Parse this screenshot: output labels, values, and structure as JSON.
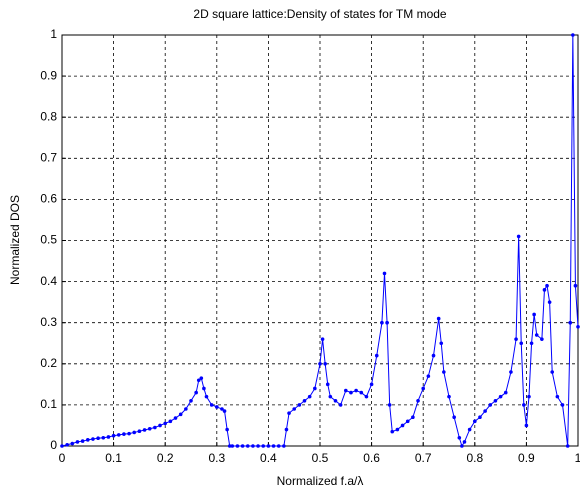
{
  "chart_data": {
    "type": "line",
    "title": "2D square lattice:Density of states for TM mode",
    "xlabel": "Normalized f.a/λ",
    "ylabel": "Normalized DOS",
    "x": [
      0,
      0.01,
      0.02,
      0.03,
      0.04,
      0.05,
      0.06,
      0.07,
      0.08,
      0.09,
      0.1,
      0.11,
      0.12,
      0.13,
      0.14,
      0.15,
      0.16,
      0.17,
      0.18,
      0.19,
      0.2,
      0.21,
      0.22,
      0.23,
      0.24,
      0.25,
      0.26,
      0.265,
      0.27,
      0.275,
      0.28,
      0.29,
      0.3,
      0.31,
      0.315,
      0.32,
      0.325,
      0.33,
      0.34,
      0.35,
      0.36,
      0.37,
      0.38,
      0.39,
      0.4,
      0.41,
      0.42,
      0.43,
      0.435,
      0.44,
      0.45,
      0.46,
      0.47,
      0.48,
      0.49,
      0.5,
      0.505,
      0.51,
      0.515,
      0.52,
      0.53,
      0.54,
      0.55,
      0.56,
      0.57,
      0.58,
      0.59,
      0.6,
      0.61,
      0.62,
      0.625,
      0.63,
      0.635,
      0.64,
      0.65,
      0.66,
      0.67,
      0.68,
      0.69,
      0.7,
      0.71,
      0.72,
      0.73,
      0.735,
      0.74,
      0.75,
      0.76,
      0.77,
      0.775,
      0.78,
      0.79,
      0.8,
      0.81,
      0.82,
      0.83,
      0.84,
      0.85,
      0.86,
      0.87,
      0.88,
      0.885,
      0.89,
      0.895,
      0.9,
      0.905,
      0.91,
      0.915,
      0.92,
      0.93,
      0.935,
      0.94,
      0.945,
      0.95,
      0.96,
      0.97,
      0.98,
      0.985,
      0.99,
      0.995,
      1
    ],
    "series": [
      {
        "color": "#0000ff",
        "values": [
          0,
          0.003,
          0.006,
          0.01,
          0.012,
          0.015,
          0.017,
          0.019,
          0.02,
          0.022,
          0.025,
          0.027,
          0.029,
          0.03,
          0.033,
          0.036,
          0.039,
          0.042,
          0.045,
          0.05,
          0.055,
          0.06,
          0.068,
          0.077,
          0.09,
          0.11,
          0.13,
          0.16,
          0.165,
          0.14,
          0.12,
          0.1,
          0.095,
          0.09,
          0.085,
          0.04,
          0,
          0,
          0,
          0,
          0,
          0,
          0,
          0,
          0,
          0,
          0,
          0,
          0.04,
          0.08,
          0.09,
          0.1,
          0.11,
          0.12,
          0.14,
          0.2,
          0.26,
          0.2,
          0.15,
          0.12,
          0.11,
          0.1,
          0.135,
          0.13,
          0.135,
          0.13,
          0.12,
          0.15,
          0.22,
          0.3,
          0.42,
          0.3,
          0.1,
          0.035,
          0.04,
          0.05,
          0.06,
          0.07,
          0.11,
          0.14,
          0.17,
          0.22,
          0.31,
          0.25,
          0.18,
          0.12,
          0.07,
          0.02,
          0,
          0.01,
          0.04,
          0.06,
          0.07,
          0.085,
          0.1,
          0.11,
          0.12,
          0.13,
          0.18,
          0.26,
          0.51,
          0.25,
          0.1,
          0.05,
          0.12,
          0.25,
          0.32,
          0.27,
          0.26,
          0.38,
          0.39,
          0.35,
          0.18,
          0.12,
          0.1,
          0,
          0.3,
          1,
          0.39,
          0.29
        ]
      }
    ],
    "xlim": [
      0,
      1
    ],
    "ylim": [
      0,
      1
    ],
    "xticks": [
      0,
      0.1,
      0.2,
      0.3,
      0.4,
      0.5,
      0.6,
      0.7,
      0.8,
      0.9,
      1
    ],
    "yticks": [
      0,
      0.1,
      0.2,
      0.3,
      0.4,
      0.5,
      0.6,
      0.7,
      0.8,
      0.9,
      1
    ],
    "grid": true
  }
}
